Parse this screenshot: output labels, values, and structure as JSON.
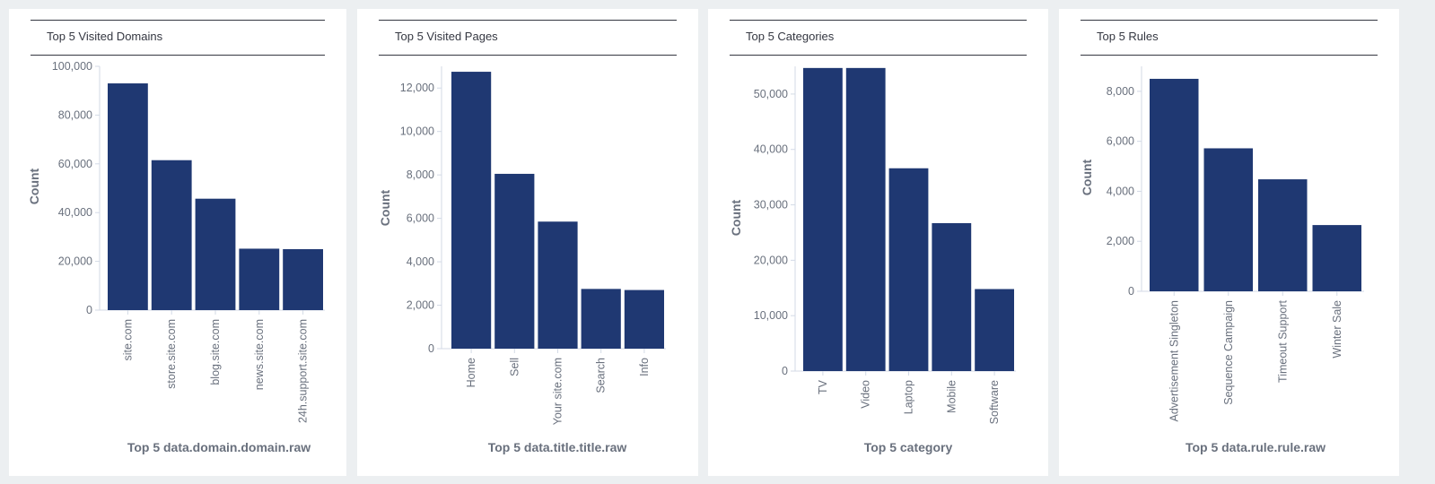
{
  "colors": {
    "bar": "#1f3872",
    "background": "#eceff1",
    "panel": "#ffffff"
  },
  "panels": [
    {
      "title": "Top 5 Visited Domains"
    },
    {
      "title": "Top 5 Visited Pages"
    },
    {
      "title": "Top 5 Categories"
    },
    {
      "title": "Top 5 Rules"
    }
  ],
  "chart_data": [
    {
      "type": "bar",
      "title": "Top 5 Visited Domains",
      "xlabel": "Top 5 data.domain.domain.raw",
      "ylabel": "Count",
      "categories": [
        "site.com",
        "store.site.com",
        "blog.site.com",
        "news.site.com",
        "24h.support.site.com"
      ],
      "values": [
        93000,
        61500,
        45700,
        25200,
        25000
      ],
      "ylim": [
        0,
        100000
      ],
      "yticks": [
        0,
        20000,
        40000,
        60000,
        80000,
        100000
      ],
      "ytick_labels": [
        "0",
        "20,000",
        "40,000",
        "60,000",
        "80,000",
        "100,000"
      ],
      "grid": false
    },
    {
      "type": "bar",
      "title": "Top 5 Visited Pages",
      "xlabel": "Top 5 data.title.title.raw",
      "ylabel": "Count",
      "categories": [
        "Home",
        "Sell",
        "Your site.com",
        "Search",
        "Info"
      ],
      "values": [
        12750,
        8050,
        5850,
        2750,
        2700
      ],
      "ylim": [
        0,
        13000
      ],
      "yticks": [
        0,
        2000,
        4000,
        6000,
        8000,
        10000,
        12000
      ],
      "ytick_labels": [
        "0",
        "2,000",
        "4,000",
        "6,000",
        "8,000",
        "10,000",
        "12,000"
      ],
      "grid": false
    },
    {
      "type": "bar",
      "title": "Top 5 Categories",
      "xlabel": "Top 5 category",
      "ylabel": "Count",
      "categories": [
        "TV",
        "Video",
        "Laptop",
        "Mobile",
        "Software"
      ],
      "values": [
        54700,
        54700,
        36600,
        26700,
        14800
      ],
      "ylim": [
        0,
        55000
      ],
      "yticks": [
        0,
        10000,
        20000,
        30000,
        40000,
        50000
      ],
      "ytick_labels": [
        "0",
        "10,000",
        "20,000",
        "30,000",
        "40,000",
        "50,000"
      ],
      "grid": false
    },
    {
      "type": "bar",
      "title": "Top 5 Rules",
      "xlabel": "Top 5 data.rule.rule.raw",
      "ylabel": "Count",
      "categories": [
        "Advertisement Singleton",
        "Sequence Campaign",
        "Timeout Support",
        "Winter Sale"
      ],
      "values": [
        8500,
        5720,
        4480,
        2650
      ],
      "ylim": [
        0,
        9000
      ],
      "yticks": [
        0,
        2000,
        4000,
        6000,
        8000
      ],
      "ytick_labels": [
        "0",
        "2,000",
        "4,000",
        "6,000",
        "8,000"
      ],
      "grid": false
    }
  ]
}
